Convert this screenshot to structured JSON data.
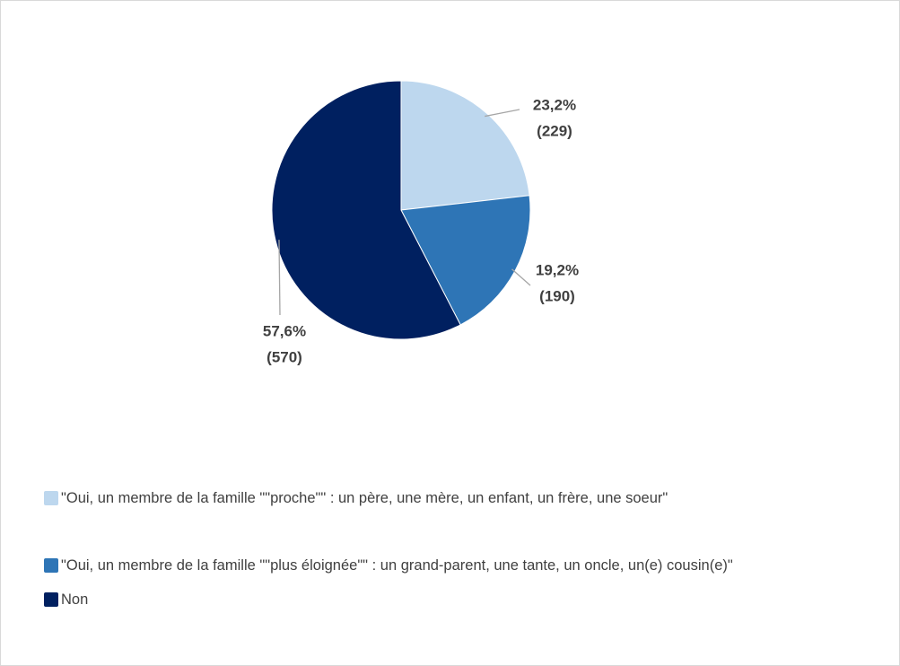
{
  "chart_data": {
    "type": "pie",
    "categories": [
      "\"Oui, un membre de la famille \"\"proche\"\" : un père, une mère, un enfant, un frère, une soeur\"",
      "\"Oui, un membre de la famille \"\"plus éloignée\"\" : un grand-parent, une tante, un oncle, un(e) cousin(e)\"",
      "Non"
    ],
    "values": [
      23.2,
      19.2,
      57.6
    ],
    "value_labels": [
      "23,2%",
      "19,2%",
      "57,6%"
    ],
    "counts": [
      229,
      190,
      570
    ],
    "count_labels": [
      "(229)",
      "(190)",
      "(570)"
    ],
    "colors": [
      "#bdd7ee",
      "#2e75b6",
      "#002060"
    ],
    "legend": "bottom"
  }
}
